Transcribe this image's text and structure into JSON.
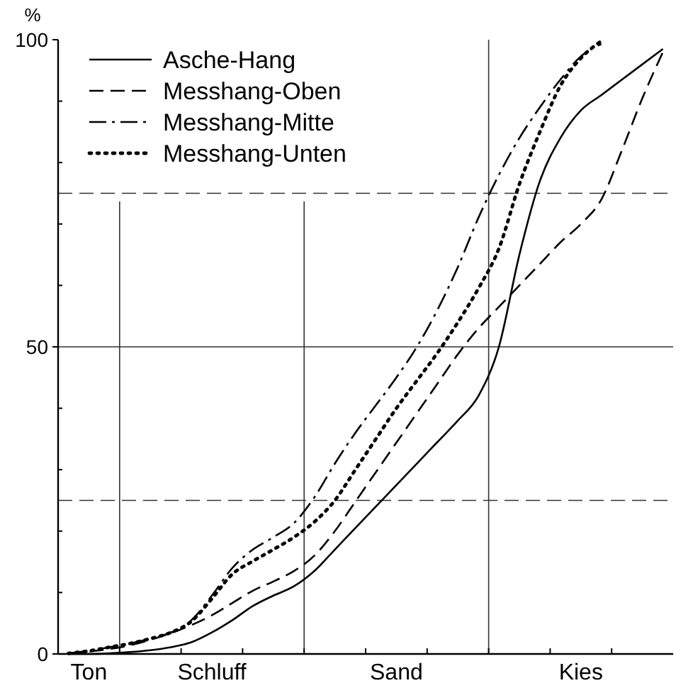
{
  "chart_data": {
    "type": "line",
    "ylabel": "%",
    "ylim": [
      0,
      100
    ],
    "categories": [
      null,
      "Ton",
      null,
      null,
      null,
      null,
      null,
      "Schluff",
      null,
      null,
      null,
      null,
      null,
      null,
      null,
      null,
      "Sand",
      null,
      null,
      null,
      null,
      null,
      null,
      null,
      null,
      "Kies",
      null,
      null,
      null,
      null
    ],
    "yticks": [
      0,
      {
        "value": 10,
        "label": null
      },
      {
        "value": 20,
        "label": null
      },
      {
        "value": 30,
        "label": null
      },
      {
        "value": 40,
        "label": null
      },
      50,
      {
        "value": 60,
        "label": null
      },
      {
        "value": 70,
        "label": null
      },
      {
        "value": 80,
        "label": null
      },
      {
        "value": 90,
        "label": null
      },
      100
    ],
    "ref_lines": [
      {
        "axis": "y",
        "value": 25,
        "line_style": "dashed"
      },
      {
        "axis": "y",
        "value": 50,
        "line_style": "solid"
      },
      {
        "axis": "y",
        "value": 75,
        "line_style": "dashed"
      }
    ],
    "legend": "top left",
    "series": [
      {
        "name": "Asche-Hang",
        "color": "#000000",
        "line_style": "solid",
        "values": [
          0,
          0,
          0.1,
          0.3,
          0.6,
          1.1,
          1.9,
          3.5,
          5.5,
          7.8,
          9.5,
          11,
          13.5,
          17,
          20.5,
          24,
          27.5,
          31,
          34.5,
          38,
          42,
          50,
          65,
          77,
          84,
          88.5,
          91,
          93.5,
          96,
          98.5
        ]
      },
      {
        "name": "Messhang-Oben",
        "color": "#000000",
        "line_style": "dashed",
        "values": [
          0.1,
          0.4,
          0.8,
          1.4,
          2.3,
          3.4,
          4.7,
          6.3,
          8.3,
          10.3,
          11.8,
          13.5,
          16,
          20,
          24.8,
          29.6,
          34.4,
          39.2,
          44,
          48.8,
          53,
          56.5,
          60,
          63.5,
          67,
          70,
          74,
          82,
          90.5,
          98
        ]
      },
      {
        "name": "Messhang-Mitte",
        "color": "#000000",
        "line_style": "dashdot",
        "values": [
          0.1,
          0.5,
          1.1,
          1.7,
          2.5,
          3.5,
          5.5,
          9.5,
          14,
          17,
          19,
          21.3,
          25.5,
          31,
          36,
          40.5,
          45,
          50,
          56,
          63,
          71,
          78,
          84,
          89,
          93.5,
          97.3,
          99.3,
          null,
          null,
          null
        ]
      },
      {
        "name": "Messhang-Unten",
        "color": "#000000",
        "line_style": "dotted",
        "values": [
          0.1,
          0.5,
          1.1,
          1.7,
          2.5,
          3.5,
          5.3,
          9,
          13,
          15.1,
          17,
          19,
          21.5,
          25,
          30,
          35,
          40,
          44.5,
          49,
          54,
          59.5,
          66,
          76.5,
          85,
          92.5,
          97,
          99.8,
          null,
          null,
          null
        ]
      }
    ]
  }
}
